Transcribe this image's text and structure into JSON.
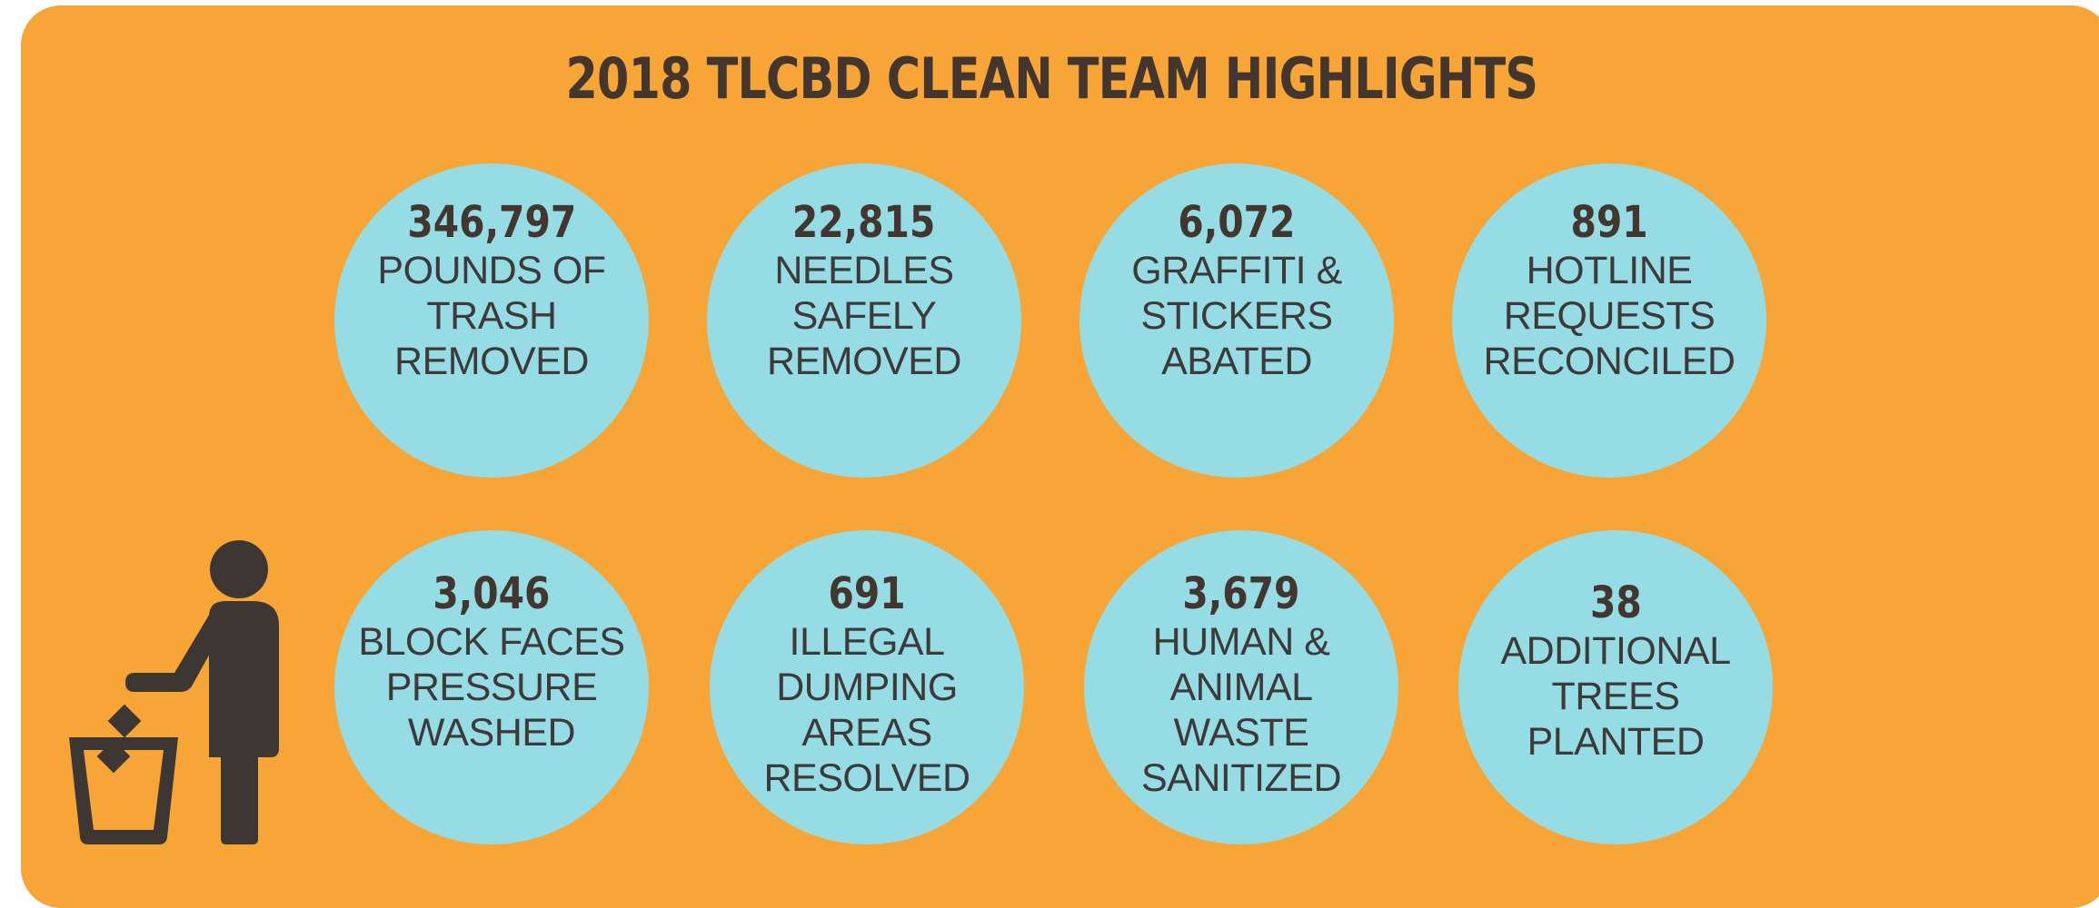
{
  "title": "2018 TLCBD CLEAN TEAM HIGHLIGHTS",
  "colors": {
    "background": "#f6a536",
    "circle": "#96dce4",
    "text": "#43362f"
  },
  "icon": "person-throwing-trash-icon",
  "stats": [
    {
      "value": "346,797",
      "label": "POUNDS OF\nTRASH\nREMOVED"
    },
    {
      "value": "22,815",
      "label": "NEEDLES\nSAFELY\nREMOVED"
    },
    {
      "value": "6,072",
      "label": "GRAFFITI &\nSTICKERS\nABATED"
    },
    {
      "value": "891",
      "label": "HOTLINE\nREQUESTS\nRECONCILED"
    },
    {
      "value": "3,046",
      "label": "BLOCK FACES\nPRESSURE\nWASHED"
    },
    {
      "value": "691",
      "label": "ILLEGAL\nDUMPING\nAREAS\nRESOLVED"
    },
    {
      "value": "3,679",
      "label": "HUMAN &\nANIMAL\nWASTE\nSANITIZED"
    },
    {
      "value": "38",
      "label": "ADDITIONAL\nTREES\nPLANTED"
    }
  ]
}
